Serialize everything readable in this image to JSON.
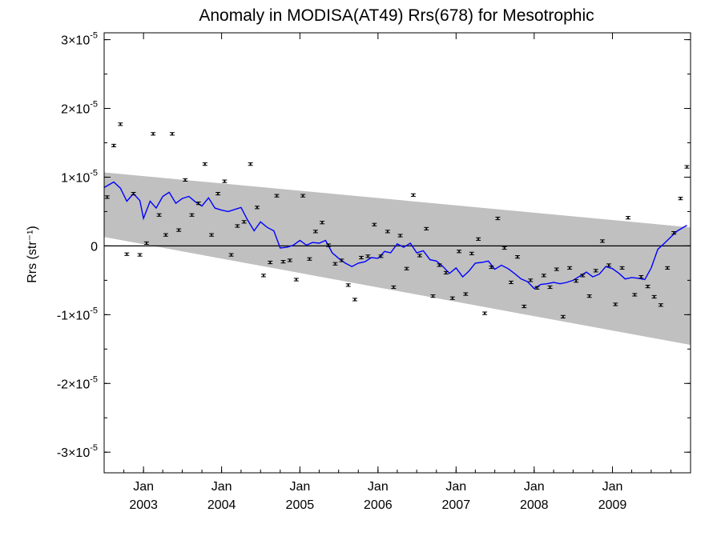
{
  "chart_data": {
    "type": "line",
    "title": "Anomaly in MODISA(AT49) Rrs(678) for Mesotrophic",
    "ylabel": "Rrs (str⁻¹)",
    "xlabel": "",
    "xlim": [
      "2002-07-01",
      "2010-01-01"
    ],
    "ylim": [
      -3.3e-05,
      3.1e-05
    ],
    "x_ticks": [
      {
        "month": "Jan",
        "year": "2003",
        "date": "2003-01-01"
      },
      {
        "month": "Jan",
        "year": "2004",
        "date": "2004-01-01"
      },
      {
        "month": "Jan",
        "year": "2005",
        "date": "2005-01-01"
      },
      {
        "month": "Jan",
        "year": "2006",
        "date": "2006-01-01"
      },
      {
        "month": "Jan",
        "year": "2007",
        "date": "2007-01-01"
      },
      {
        "month": "Jan",
        "year": "2008",
        "date": "2008-01-01"
      },
      {
        "month": "Jan",
        "year": "2009",
        "date": "2009-01-01"
      }
    ],
    "y_ticks": [
      {
        "value": 3e-05,
        "mantissa": "3×10",
        "exp": "-5"
      },
      {
        "value": 2e-05,
        "mantissa": "2×10",
        "exp": "-5"
      },
      {
        "value": 1e-05,
        "mantissa": "1×10",
        "exp": "-5"
      },
      {
        "value": 0,
        "mantissa": "0",
        "exp": ""
      },
      {
        "value": -1e-05,
        "mantissa": "-1×10",
        "exp": "-5"
      },
      {
        "value": -2e-05,
        "mantissa": "-2×10",
        "exp": "-5"
      },
      {
        "value": -3e-05,
        "mantissa": "-3×10",
        "exp": "-5"
      }
    ],
    "confidence_band": {
      "color": "#c0c0c0",
      "upper": [
        [
          "2002-07-01",
          1.07e-05
        ],
        [
          "2010-01-01",
          2.7e-06
        ]
      ],
      "lower": [
        [
          "2002-07-01",
          1.3e-06
        ],
        [
          "2010-01-01",
          -1.44e-05
        ]
      ]
    },
    "zero_line": true,
    "series": [
      {
        "type": "scatter_errorbar",
        "color": "#000000",
        "x": [
          "2002-07-15",
          "2002-08-15",
          "2002-09-15",
          "2002-10-15",
          "2002-11-15",
          "2002-12-15",
          "2003-01-15",
          "2003-02-15",
          "2003-03-15",
          "2003-04-15",
          "2003-05-15",
          "2003-06-15",
          "2003-07-15",
          "2003-08-15",
          "2003-09-15",
          "2003-10-15",
          "2003-11-15",
          "2003-12-15",
          "2004-01-15",
          "2004-02-15",
          "2004-03-15",
          "2004-04-15",
          "2004-05-15",
          "2004-06-15",
          "2004-07-15",
          "2004-08-15",
          "2004-09-15",
          "2004-10-15",
          "2004-11-15",
          "2004-12-15",
          "2005-01-15",
          "2005-02-15",
          "2005-03-15",
          "2005-04-15",
          "2005-05-15",
          "2005-06-15",
          "2005-07-15",
          "2005-08-15",
          "2005-09-15",
          "2005-10-15",
          "2005-11-15",
          "2005-12-15",
          "2006-01-15",
          "2006-02-15",
          "2006-03-15",
          "2006-04-15",
          "2006-05-15",
          "2006-06-15",
          "2006-07-15",
          "2006-08-15",
          "2006-09-15",
          "2006-10-15",
          "2006-11-15",
          "2006-12-15",
          "2007-01-15",
          "2007-02-15",
          "2007-03-15",
          "2007-04-15",
          "2007-05-15",
          "2007-06-15",
          "2007-07-15",
          "2007-08-15",
          "2007-09-15",
          "2007-10-15",
          "2007-11-15",
          "2007-12-15",
          "2008-01-15",
          "2008-02-15",
          "2008-03-15",
          "2008-04-15",
          "2008-05-15",
          "2008-06-15",
          "2008-07-15",
          "2008-08-15",
          "2008-09-15",
          "2008-10-15",
          "2008-11-15",
          "2008-12-15",
          "2009-01-15",
          "2009-02-15",
          "2009-03-15",
          "2009-04-15",
          "2009-05-15",
          "2009-06-15",
          "2009-07-15",
          "2009-08-15",
          "2009-09-15",
          "2009-10-15",
          "2009-11-15",
          "2009-12-15"
        ],
        "y": [
          7.1e-06,
          1.46e-05,
          1.77e-05,
          -1.2e-06,
          7.6e-06,
          -1.3e-06,
          4e-07,
          1.63e-05,
          4.5e-06,
          1.6e-06,
          1.63e-05,
          2.3e-06,
          9.6e-06,
          4.5e-06,
          6.2e-06,
          1.19e-05,
          1.6e-06,
          7.6e-06,
          9.4e-06,
          -1.3e-06,
          2.9e-06,
          3.5e-06,
          1.19e-05,
          5.6e-06,
          -4.3e-06,
          -2.4e-06,
          7.3e-06,
          -2.3e-06,
          -2.1e-06,
          -4.9e-06,
          7.3e-06,
          -1.9e-06,
          2.1e-06,
          3.4e-06,
          1e-07,
          -2.6e-06,
          -2.1e-06,
          -5.7e-06,
          -7.8e-06,
          -1.7e-06,
          -1.5e-06,
          3.1e-06,
          -1.5e-06,
          2.1e-06,
          -6e-06,
          1.5e-06,
          -3.3e-06,
          7.4e-06,
          -1.4e-06,
          2.5e-06,
          -7.3e-06,
          -2.8e-06,
          -3.9e-06,
          -7.6e-06,
          -8e-07,
          -7e-06,
          -1.1e-06,
          1e-06,
          -9.8e-06,
          -3.1e-06,
          4e-06,
          -3e-07,
          -5.3e-06,
          -1.6e-06,
          -8.8e-06,
          -5e-06,
          -6.1e-06,
          -4.3e-06,
          -6e-06,
          -3.4e-06,
          -1.03e-05,
          -3.2e-06,
          -5.1e-06,
          -4.3e-06,
          -7.3e-06,
          -3.6e-06,
          7e-07,
          -2.8e-06,
          -8.5e-06,
          -3.2e-06,
          4.1e-06,
          -7.1e-06,
          -4.5e-06,
          -5.9e-06,
          -7.4e-06,
          -8.6e-06,
          -3.2e-06,
          1.9e-06,
          6.9e-06,
          1.15e-05
        ]
      },
      {
        "type": "line",
        "color": "#0000ff",
        "x": [
          "2002-07-01",
          "2002-08-15",
          "2002-09-15",
          "2002-10-15",
          "2002-11-15",
          "2002-12-15",
          "2003-01-01",
          "2003-02-01",
          "2003-03-01",
          "2003-04-01",
          "2003-05-01",
          "2003-06-01",
          "2003-07-01",
          "2003-08-01",
          "2003-09-01",
          "2003-10-01",
          "2003-11-01",
          "2003-12-01",
          "2004-01-01",
          "2004-02-01",
          "2004-03-01",
          "2004-04-01",
          "2004-05-01",
          "2004-06-01",
          "2004-07-01",
          "2004-08-01",
          "2004-09-01",
          "2004-10-01",
          "2004-11-01",
          "2004-12-01",
          "2005-01-01",
          "2005-02-01",
          "2005-03-01",
          "2005-04-01",
          "2005-05-01",
          "2005-06-01",
          "2005-07-01",
          "2005-08-01",
          "2005-09-01",
          "2005-10-01",
          "2005-11-01",
          "2005-12-01",
          "2006-01-01",
          "2006-02-01",
          "2006-03-01",
          "2006-04-01",
          "2006-05-01",
          "2006-06-01",
          "2006-07-01",
          "2006-08-01",
          "2006-09-01",
          "2006-10-01",
          "2006-11-01",
          "2006-12-01",
          "2007-01-01",
          "2007-02-01",
          "2007-03-01",
          "2007-04-01",
          "2007-05-01",
          "2007-06-01",
          "2007-07-01",
          "2007-08-01",
          "2007-09-01",
          "2007-10-01",
          "2007-11-01",
          "2007-12-01",
          "2008-01-01",
          "2008-02-01",
          "2008-03-01",
          "2008-04-01",
          "2008-05-01",
          "2008-06-01",
          "2008-07-01",
          "2008-08-01",
          "2008-09-01",
          "2008-10-01",
          "2008-11-01",
          "2008-12-01",
          "2009-01-01",
          "2009-02-01",
          "2009-03-01",
          "2009-04-01",
          "2009-05-01",
          "2009-06-01",
          "2009-07-01",
          "2009-08-01",
          "2009-09-01",
          "2009-10-01",
          "2009-11-01",
          "2009-12-15"
        ],
        "y": [
          8.5e-06,
          9.3e-06,
          8.4e-06,
          6.5e-06,
          7.6e-06,
          6.6e-06,
          4e-06,
          6.5e-06,
          5.5e-06,
          7.2e-06,
          7.8e-06,
          6.2e-06,
          6.9e-06,
          7.2e-06,
          6.4e-06,
          5.8e-06,
          7e-06,
          5.5e-06,
          5.2e-06,
          5e-06,
          5.3e-06,
          5.6e-06,
          3.8e-06,
          2.2e-06,
          3.5e-06,
          2.7e-06,
          2.2e-06,
          -3e-07,
          -2e-07,
          1e-07,
          8e-07,
          1e-07,
          5e-07,
          4e-07,
          8e-07,
          -1e-06,
          -1.8e-06,
          -2.5e-06,
          -3e-06,
          -2.5e-06,
          -2.3e-06,
          -1.7e-06,
          -1.8e-06,
          -8e-07,
          -1e-06,
          3e-07,
          -2e-07,
          4e-07,
          -1e-06,
          -7e-07,
          -2e-06,
          -2.2e-06,
          -3e-06,
          -4e-06,
          -3.2e-06,
          -4.5e-06,
          -3.7e-06,
          -2.5e-06,
          -2.4e-06,
          -2.2e-06,
          -3.4e-06,
          -2.8e-06,
          -3.3e-06,
          -4e-06,
          -4.8e-06,
          -5.2e-06,
          -6.2e-06,
          -5.6e-06,
          -5.5e-06,
          -5.3e-06,
          -5.5e-06,
          -5.3e-06,
          -5e-06,
          -4.4e-06,
          -3.8e-06,
          -4.5e-06,
          -4.1e-06,
          -3e-06,
          -3.3e-06,
          -4e-06,
          -4.8e-06,
          -4.6e-06,
          -4.7e-06,
          -4.9e-06,
          -3.2e-06,
          -5e-07,
          4e-07,
          1.3e-06,
          2.2e-06,
          3e-06
        ]
      }
    ],
    "grid": false,
    "legend": "none"
  }
}
